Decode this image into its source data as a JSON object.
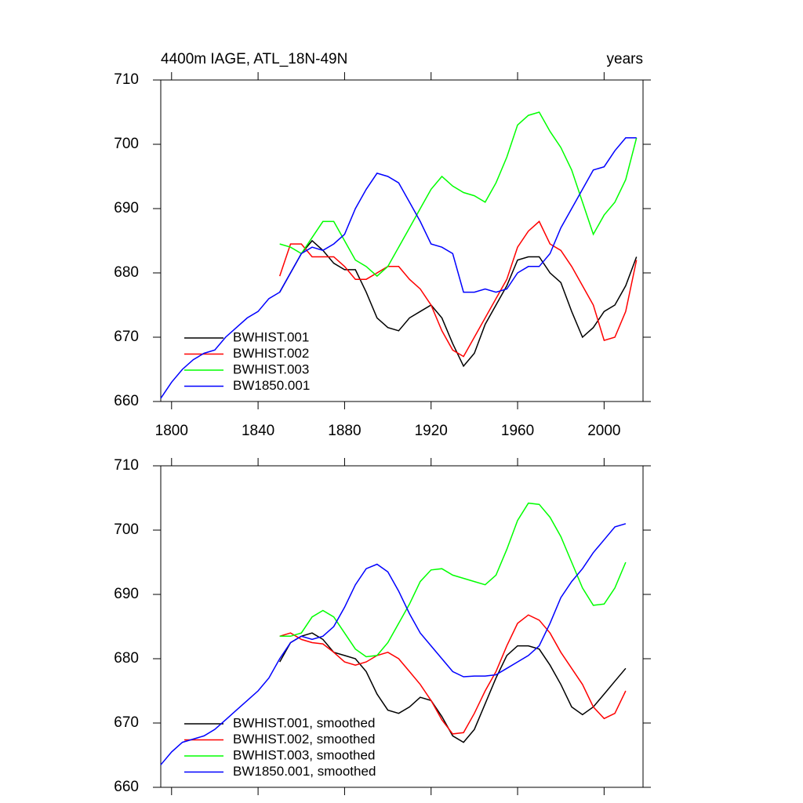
{
  "chart_data": [
    {
      "type": "line",
      "title": "4400m IAGE, ATL_18N-49N",
      "units_label": "years",
      "x": [
        1795,
        1800,
        1805,
        1810,
        1815,
        1820,
        1825,
        1830,
        1835,
        1840,
        1845,
        1850,
        1855,
        1860,
        1865,
        1870,
        1875,
        1880,
        1885,
        1890,
        1895,
        1900,
        1905,
        1910,
        1915,
        1920,
        1925,
        1930,
        1935,
        1940,
        1945,
        1950,
        1955,
        1960,
        1965,
        1970,
        1975,
        1980,
        1985,
        1990,
        1995,
        2000,
        2005,
        2010,
        2015
      ],
      "xlim": [
        1795,
        2018
      ],
      "xticks": [
        1800,
        1840,
        1880,
        1920,
        1960,
        2000
      ],
      "ylim": [
        660,
        710
      ],
      "yticks": [
        660,
        670,
        680,
        690,
        700,
        710
      ],
      "legend": "lower left",
      "series": [
        {
          "name": "BWHIST.001",
          "color": "#000000",
          "values": [
            null,
            null,
            null,
            null,
            null,
            null,
            null,
            null,
            null,
            null,
            null,
            677,
            680,
            683,
            685,
            683.5,
            681.5,
            680.5,
            680.5,
            677,
            673,
            671.5,
            671,
            673,
            674,
            675,
            673,
            669,
            665.5,
            667.5,
            672,
            675,
            678,
            682,
            682.5,
            682.5,
            680,
            678.5,
            674,
            670,
            671.5,
            674,
            675,
            678,
            682.5
          ]
        },
        {
          "name": "BWHIST.002",
          "color": "#ff0000",
          "values": [
            null,
            null,
            null,
            null,
            null,
            null,
            null,
            null,
            null,
            null,
            null,
            679.5,
            684.5,
            684.5,
            682.5,
            682.5,
            682.5,
            681,
            679,
            679,
            680,
            681,
            681,
            679,
            677.5,
            675,
            671,
            668,
            667,
            670,
            673,
            676,
            679,
            684,
            686.5,
            688,
            684.5,
            683.5,
            681,
            678,
            675,
            669.5,
            670,
            674,
            682
          ]
        },
        {
          "name": "BWHIST.003",
          "color": "#00ff00",
          "values": [
            null,
            null,
            null,
            null,
            null,
            null,
            null,
            null,
            null,
            null,
            null,
            684.5,
            684,
            683,
            685.5,
            688,
            688,
            685,
            682,
            681,
            679.5,
            681,
            684,
            687,
            690,
            693,
            695,
            693.5,
            692.5,
            692,
            691,
            694,
            698,
            703,
            704.5,
            705,
            702,
            699.5,
            696,
            691,
            686,
            689,
            691,
            694.5,
            701
          ]
        },
        {
          "name": "BW1850.001",
          "color": "#0000ff",
          "values": [
            660.5,
            663,
            665,
            666.5,
            667.5,
            668,
            670,
            671.5,
            673,
            674,
            676,
            677,
            680,
            683,
            684,
            683.5,
            684.5,
            686,
            690,
            693,
            695.5,
            695,
            694,
            691,
            688,
            684.5,
            684,
            683,
            677,
            677,
            677.5,
            677,
            677.5,
            680,
            681,
            681,
            683,
            687,
            690,
            693,
            696,
            696.5,
            699,
            701,
            701
          ]
        }
      ]
    },
    {
      "type": "line",
      "x": [
        1795,
        1800,
        1805,
        1810,
        1815,
        1820,
        1825,
        1830,
        1835,
        1840,
        1845,
        1850,
        1855,
        1860,
        1865,
        1870,
        1875,
        1880,
        1885,
        1890,
        1895,
        1900,
        1905,
        1910,
        1915,
        1920,
        1925,
        1930,
        1935,
        1940,
        1945,
        1950,
        1955,
        1960,
        1965,
        1970,
        1975,
        1980,
        1985,
        1990,
        1995,
        2000,
        2005,
        2010,
        2015
      ],
      "xlim": [
        1795,
        2018
      ],
      "xticks": [
        1800,
        1840,
        1880,
        1920,
        1960,
        2000
      ],
      "ylim": [
        660,
        710
      ],
      "yticks": [
        660,
        670,
        680,
        690,
        700,
        710
      ],
      "legend": "lower left",
      "series": [
        {
          "name": "BWHIST.001, smoothed",
          "color": "#000000",
          "values": [
            null,
            null,
            null,
            null,
            null,
            null,
            null,
            null,
            null,
            null,
            null,
            679.5,
            682.5,
            683.5,
            684,
            683,
            681,
            680.5,
            680,
            678,
            674.5,
            672,
            671.5,
            672.5,
            674,
            673.5,
            671,
            668,
            667,
            669,
            673,
            677,
            680.5,
            682,
            682,
            681.5,
            679,
            676,
            672.5,
            671.3,
            672.5,
            674.5,
            676.5,
            678.5,
            null
          ]
        },
        {
          "name": "BWHIST.002, smoothed",
          "color": "#ff0000",
          "values": [
            null,
            null,
            null,
            null,
            null,
            null,
            null,
            null,
            null,
            null,
            null,
            683.5,
            684,
            683,
            682.5,
            682.3,
            681,
            679.5,
            679,
            679.5,
            680.5,
            681,
            680,
            678,
            676,
            673.5,
            670.5,
            668.3,
            668.5,
            671.5,
            675,
            678,
            682,
            685.5,
            686.8,
            686,
            684,
            681,
            678.5,
            676,
            672.5,
            670.7,
            671.5,
            675,
            null
          ]
        },
        {
          "name": "BWHIST.003, smoothed",
          "color": "#00ff00",
          "values": [
            null,
            null,
            null,
            null,
            null,
            null,
            null,
            null,
            null,
            null,
            null,
            683.5,
            683.5,
            684,
            686.5,
            687.5,
            686.5,
            684,
            681.5,
            680.3,
            680.5,
            682.5,
            685.5,
            688.5,
            692,
            693.8,
            694,
            693,
            692.5,
            692,
            691.5,
            693,
            697,
            701.5,
            704.2,
            704,
            702,
            699,
            695,
            691,
            688.3,
            688.5,
            691,
            695,
            null
          ]
        },
        {
          "name": "BW1850.001, smoothed",
          "color": "#0000ff",
          "values": [
            663.5,
            665.5,
            667,
            667.5,
            668,
            669,
            670.5,
            672,
            673.5,
            675,
            677,
            680,
            682.5,
            683.5,
            683,
            683.5,
            685,
            688,
            691.5,
            694,
            694.7,
            693.5,
            690.5,
            687,
            684,
            682,
            680,
            678,
            677.2,
            677.3,
            677.3,
            677.5,
            678.5,
            679.5,
            680.5,
            682,
            685.5,
            689.5,
            692,
            694,
            696.5,
            698.5,
            700.5,
            701,
            null
          ]
        }
      ]
    }
  ]
}
